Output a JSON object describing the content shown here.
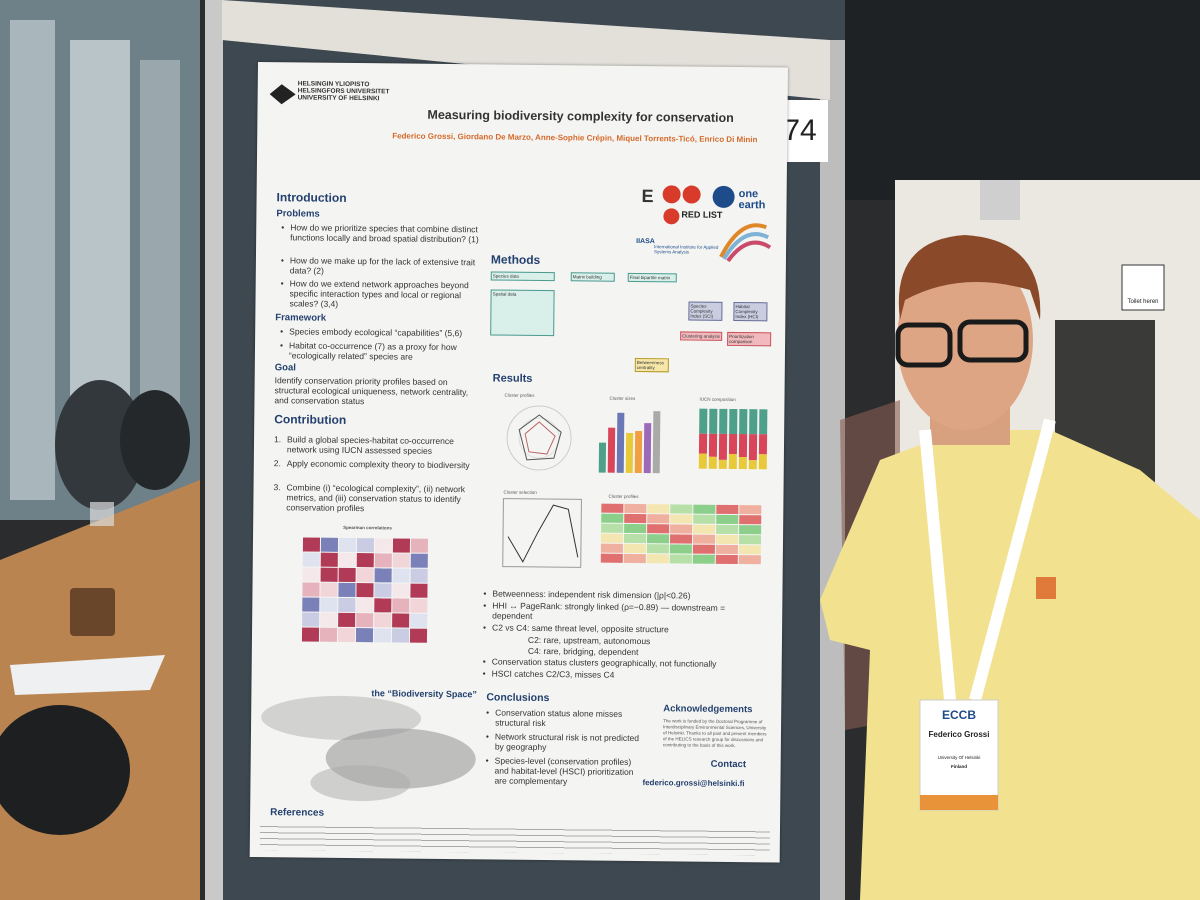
{
  "poster": {
    "university": [
      "HELSINGIN YLIOPISTO",
      "HELSINGFORS UNIVERSITET",
      "UNIVERSITY OF HELSINKI"
    ],
    "title": "Measuring biodiversity complexity for conservation",
    "authors": "Federico Grossi, Giordano De Marzo, Anne-Sophie Crépin, Miquel Torrents-Ticó, Enrico Di Minin",
    "board_number": "74",
    "logos": [
      "RED LIST",
      "one earth",
      "IIASA",
      "International Institute for Applied Systems Analysis"
    ],
    "introduction": {
      "heading": "Introduction",
      "problems_heading": "Problems",
      "problems": [
        "How do we prioritize species that combine distinct functions locally and broad spatial distribution? (1)",
        "How do we make up for the lack of extensive trait data? (2)",
        "How do we extend network approaches beyond specific interaction types and local or regional scales? (3,4)"
      ],
      "framework_heading": "Framework",
      "framework": [
        "Species embody ecological “capabilities” (5,6)",
        "Habitat co-occurrence (7) as a proxy for how “ecologically related” species are"
      ],
      "goal_heading": "Goal",
      "goal": "Identify conservation priority profiles based on structural ecological uniqueness, network centrality, and conservation status"
    },
    "contribution": {
      "heading": "Contribution",
      "items": [
        "Build a global species-habitat co-occurrence network using IUCN assessed species",
        "Apply economic complexity theory to biodiversity",
        "Combine (i) “ecological complexity”, (ii) network metrics, and (iii) conservation status to identify conservation profiles"
      ]
    },
    "heatmap_title": "Spearman correlations",
    "biodiversity_space": "the “Biodiversity Space”",
    "methods": {
      "heading": "Methods",
      "boxes": [
        "Species data",
        "Matrix building",
        "Final bipartite matrix",
        "Spatial data",
        "Species Complexity Index (SCI)",
        "Habitat Complexity Index (HCI)",
        "Clustering analysis",
        "Prioritization comparison",
        "Betweenness centrality"
      ]
    },
    "results": {
      "heading": "Results",
      "plot_titles": [
        "Cluster profiles",
        "Cluster sizes",
        "IUCN composition",
        "Cluster selection",
        "Cluster profiles"
      ],
      "findings": [
        "Betweenness: independent risk dimension (|ρ|<0.26)",
        "HHI ↔ PageRank: strongly linked (ρ=−0.89) — downstream = dependent",
        "C2 vs C4: same threat level, opposite structure",
        "C2: rare, upstream, autonomous",
        "C4: rare, bridging, dependent",
        "Conservation status clusters geographically, not functionally",
        "HSCI catches C2/C3, misses C4"
      ]
    },
    "conclusions": {
      "heading": "Conclusions",
      "items": [
        "Conservation status alone misses structural risk",
        "Network structural risk is not predicted by geography",
        "Species-level (conservation profiles) and habitat-level (HSCI) prioritization are complementary"
      ]
    },
    "acknowledgements": {
      "heading": "Acknowledgements",
      "text": "The work is funded by the Doctoral Programme of Interdisciplinary Environmental Sciences, University of Helsinki. Thanks to all past and present members of the HELICS research group for discussions and contributing to the basis of this work."
    },
    "contact": {
      "heading": "Contact",
      "email": "federico.grossi@helsinki.fi"
    },
    "references_heading": "References"
  },
  "badge": {
    "event": "ECCB",
    "name": "Federico Grossi",
    "affiliation": "University Of Helsinki",
    "country": "Finland"
  },
  "sign": "Toilet heren"
}
